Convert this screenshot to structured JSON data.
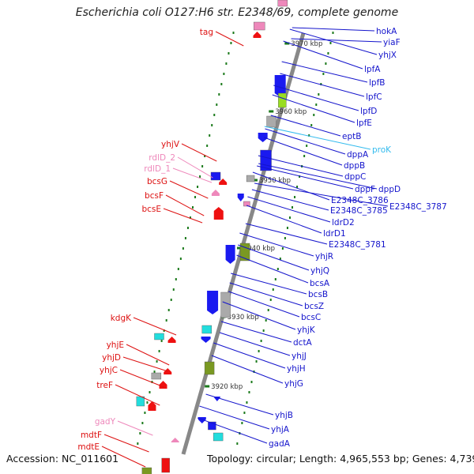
{
  "header": {
    "title": "Escherichia coli O127:H6 str. E2348/69, complete genome"
  },
  "footer": {
    "accession": "Accession: NC_011601",
    "topology": "Topology: circular; Length: 4,965,553 bp; Genes: 4,739"
  },
  "colors": {
    "strand_forward_label": "#1414cc",
    "strand_reverse_label": "#dd1111",
    "rna_label": "#ee88bb",
    "highlight_label": "#33bbee",
    "backbone": "#888888",
    "tick_mark": "#1b7a1b",
    "feature_blue": "#1a1af0",
    "feature_red": "#ee1111",
    "feature_cyan": "#22dddd",
    "feature_olive": "#7a9922",
    "feature_gray": "#aaaaaa",
    "feature_pink": "#ee88bb",
    "feature_lime": "#99dd22"
  },
  "scale_labels": [
    "3970 kbp",
    "3960 kbp",
    "3950 kbp",
    "3940 kbp",
    "3930 kbp",
    "3920 kbp"
  ],
  "right_labels": [
    {
      "text": "hokA",
      "strand": "forward"
    },
    {
      "text": "yiaF",
      "strand": "forward"
    },
    {
      "text": "yhjX",
      "strand": "forward"
    },
    {
      "text": "lpfA",
      "strand": "forward"
    },
    {
      "text": "lpfB",
      "strand": "forward"
    },
    {
      "text": "lpfC",
      "strand": "forward"
    },
    {
      "text": "lpfD",
      "strand": "forward"
    },
    {
      "text": "lpfE",
      "strand": "forward"
    },
    {
      "text": "eptB",
      "strand": "forward"
    },
    {
      "text": "proK",
      "strand": "highlight"
    },
    {
      "text": "dppA",
      "strand": "forward"
    },
    {
      "text": "dppB",
      "strand": "forward"
    },
    {
      "text": "dppC",
      "strand": "forward"
    },
    {
      "text": "dppF",
      "strand": "forward"
    },
    {
      "text": "dppD",
      "strand": "forward"
    },
    {
      "text": "E2348C_3786",
      "strand": "forward"
    },
    {
      "text": "E2348C_3785",
      "strand": "forward"
    },
    {
      "text": "E2348C_3787",
      "strand": "forward"
    },
    {
      "text": "ldrD2",
      "strand": "forward"
    },
    {
      "text": "ldrD1",
      "strand": "forward"
    },
    {
      "text": "E2348C_3781",
      "strand": "forward"
    },
    {
      "text": "yhjR",
      "strand": "forward"
    },
    {
      "text": "yhjQ",
      "strand": "forward"
    },
    {
      "text": "bcsA",
      "strand": "forward"
    },
    {
      "text": "bcsB",
      "strand": "forward"
    },
    {
      "text": "bcsZ",
      "strand": "forward"
    },
    {
      "text": "bcsC",
      "strand": "forward"
    },
    {
      "text": "yhjK",
      "strand": "forward"
    },
    {
      "text": "dctA",
      "strand": "forward"
    },
    {
      "text": "yhjJ",
      "strand": "forward"
    },
    {
      "text": "yhjH",
      "strand": "forward"
    },
    {
      "text": "yhjG",
      "strand": "forward"
    },
    {
      "text": "yhjB",
      "strand": "forward"
    },
    {
      "text": "yhjA",
      "strand": "forward"
    },
    {
      "text": "gadA",
      "strand": "forward"
    }
  ],
  "left_labels": [
    {
      "text": "tag",
      "strand": "reverse"
    },
    {
      "text": "yhjV",
      "strand": "reverse"
    },
    {
      "text": "rdlD_2",
      "strand": "rna"
    },
    {
      "text": "rdlD_1",
      "strand": "rna"
    },
    {
      "text": "bcsG",
      "strand": "reverse"
    },
    {
      "text": "bcsF",
      "strand": "reverse"
    },
    {
      "text": "bcsE",
      "strand": "reverse"
    },
    {
      "text": "kdgK",
      "strand": "reverse"
    },
    {
      "text": "yhjE",
      "strand": "reverse"
    },
    {
      "text": "yhjD",
      "strand": "reverse"
    },
    {
      "text": "yhjC",
      "strand": "reverse"
    },
    {
      "text": "treF",
      "strand": "reverse"
    },
    {
      "text": "gadY",
      "strand": "rna"
    },
    {
      "text": "mdtF",
      "strand": "reverse"
    },
    {
      "text": "mdtE",
      "strand": "reverse"
    }
  ]
}
